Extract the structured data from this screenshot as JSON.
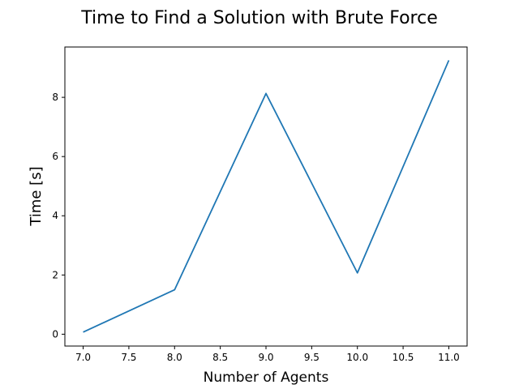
{
  "chart_data": {
    "type": "line",
    "title": "Time to Find a Solution with Brute Force",
    "xlabel": "Number of Agents",
    "ylabel": "Time [s]",
    "xlim": [
      6.8,
      11.2
    ],
    "ylim": [
      -0.4,
      9.7
    ],
    "xticks": [
      7.0,
      7.5,
      8.0,
      8.5,
      9.0,
      9.5,
      10.0,
      10.5,
      11.0
    ],
    "xtick_labels": [
      "7.0",
      "7.5",
      "8.0",
      "8.5",
      "9.0",
      "9.5",
      "10.0",
      "10.5",
      "11.0"
    ],
    "yticks": [
      0,
      2,
      4,
      6,
      8
    ],
    "ytick_labels": [
      "0",
      "2",
      "4",
      "6",
      "8"
    ],
    "grid": false,
    "series": [
      {
        "color": "#1f77b4",
        "x": [
          7,
          8,
          9,
          10,
          11
        ],
        "y": [
          0.07,
          1.5,
          8.13,
          2.07,
          9.25
        ]
      }
    ]
  }
}
